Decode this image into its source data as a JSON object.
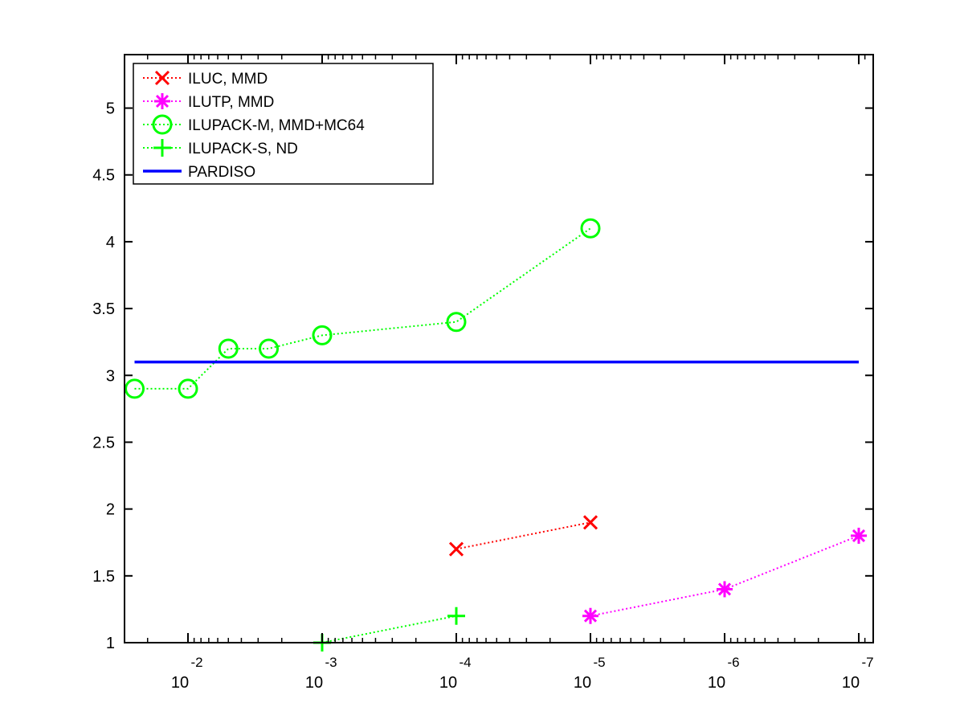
{
  "chart_data": {
    "type": "line",
    "x_scale": "log-reversed",
    "x_tick_values": [
      0.01,
      0.001,
      0.0001,
      1e-05,
      1e-06,
      1e-07
    ],
    "x_tick_labels": [
      {
        "base": "10",
        "exp": "-2"
      },
      {
        "base": "10",
        "exp": "-3"
      },
      {
        "base": "10",
        "exp": "-4"
      },
      {
        "base": "10",
        "exp": "-5"
      },
      {
        "base": "10",
        "exp": "-6"
      },
      {
        "base": "10",
        "exp": "-7"
      }
    ],
    "xlim": [
      0.04,
      8e-08
    ],
    "ylim": [
      1,
      5.4
    ],
    "y_ticks": [
      "1",
      "1.5",
      "2",
      "2.5",
      "3",
      "3.5",
      "4",
      "4.5",
      "5"
    ],
    "y_tick_values": [
      1,
      1.5,
      2,
      2.5,
      3,
      3.5,
      4,
      4.5,
      5
    ],
    "grid": false,
    "legend_position": "top-left",
    "series": [
      {
        "name": "ILUC, MMD",
        "color": "#ff0000",
        "marker": "x",
        "line_style": "dotted",
        "x": [
          0.0001,
          1e-05
        ],
        "y": [
          1.7,
          1.9
        ]
      },
      {
        "name": "ILUTP, MMD",
        "color": "#ff00ff",
        "marker": "asterisk",
        "line_style": "dotted",
        "x": [
          1e-05,
          1e-06,
          1e-07
        ],
        "y": [
          1.2,
          1.4,
          1.8
        ]
      },
      {
        "name": "ILUPACK-M, MMD+MC64",
        "color": "#00ff00",
        "marker": "circle",
        "line_style": "dotted",
        "x": [
          0.025,
          0.01,
          0.005,
          0.0025,
          0.001,
          0.0001,
          1e-05
        ],
        "y": [
          2.9,
          2.9,
          3.2,
          3.2,
          3.3,
          3.4,
          4.1
        ]
      },
      {
        "name": "ILUPACK-S, ND",
        "color": "#00ff00",
        "marker": "plus",
        "line_style": "dotted",
        "x": [
          0.001,
          0.0001
        ],
        "y": [
          1.0,
          1.2
        ]
      },
      {
        "name": "PARDISO",
        "color": "#0000ff",
        "marker": "none",
        "line_style": "solid",
        "x": [
          0.025,
          1e-07
        ],
        "y": [
          3.1,
          3.1
        ]
      }
    ]
  }
}
